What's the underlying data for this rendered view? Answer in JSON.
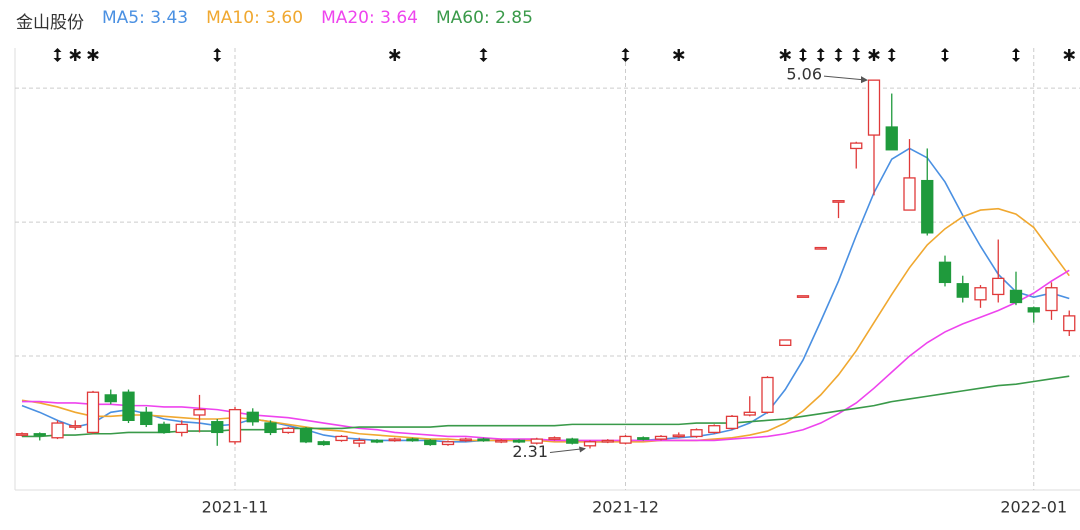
{
  "chart_data": {
    "type": "candlestick",
    "title": "金山股份",
    "categories": [
      null,
      null,
      null,
      null,
      null,
      null,
      null,
      null,
      null,
      null,
      null,
      null,
      "2021-11",
      null,
      null,
      null,
      null,
      null,
      null,
      null,
      null,
      null,
      null,
      null,
      null,
      null,
      null,
      null,
      null,
      null,
      null,
      null,
      null,
      null,
      "2021-12",
      null,
      null,
      null,
      null,
      null,
      null,
      null,
      null,
      null,
      null,
      null,
      null,
      null,
      null,
      null,
      null,
      null,
      null,
      null,
      null,
      null,
      null,
      "2022-01",
      null,
      null
    ],
    "open": [
      2.41,
      2.42,
      2.39,
      2.47,
      2.43,
      2.71,
      2.73,
      2.58,
      2.49,
      2.43,
      2.56,
      2.51,
      2.36,
      2.58,
      2.5,
      2.43,
      2.46,
      2.36,
      2.37,
      2.35,
      2.37,
      2.37,
      2.38,
      2.37,
      2.34,
      2.37,
      2.38,
      2.36,
      2.37,
      2.35,
      2.38,
      2.38,
      2.33,
      2.36,
      2.35,
      2.39,
      2.38,
      2.4,
      2.4,
      2.43,
      2.46,
      2.56,
      2.58,
      3.08,
      3.44,
      3.8,
      4.15,
      4.55,
      4.65,
      4.71,
      4.09,
      4.31,
      3.7,
      3.54,
      3.42,
      3.46,
      3.49,
      3.36,
      3.34,
      3.19
    ],
    "high": [
      2.43,
      2.43,
      2.52,
      2.52,
      2.74,
      2.75,
      2.75,
      2.62,
      2.51,
      2.52,
      2.71,
      2.53,
      2.62,
      2.61,
      2.52,
      2.47,
      2.47,
      2.37,
      2.41,
      2.39,
      2.38,
      2.39,
      2.39,
      2.38,
      2.37,
      2.39,
      2.39,
      2.38,
      2.38,
      2.39,
      2.4,
      2.39,
      2.37,
      2.38,
      2.41,
      2.4,
      2.41,
      2.43,
      2.46,
      2.49,
      2.56,
      2.7,
      2.85,
      3.12,
      3.45,
      3.81,
      4.16,
      4.6,
      5.06,
      4.96,
      4.62,
      4.55,
      3.75,
      3.6,
      3.53,
      3.87,
      3.63,
      3.37,
      3.55,
      3.34
    ],
    "low": [
      2.4,
      2.37,
      2.38,
      2.45,
      2.42,
      2.64,
      2.5,
      2.47,
      2.42,
      2.4,
      2.43,
      2.33,
      2.34,
      2.48,
      2.41,
      2.42,
      2.35,
      2.33,
      2.36,
      2.32,
      2.35,
      2.36,
      2.36,
      2.33,
      2.33,
      2.36,
      2.36,
      2.35,
      2.35,
      2.34,
      2.37,
      2.34,
      2.31,
      2.35,
      2.34,
      2.37,
      2.37,
      2.39,
      2.39,
      2.42,
      2.45,
      2.55,
      2.57,
      3.08,
      3.44,
      3.8,
      4.03,
      4.4,
      4.2,
      4.54,
      4.09,
      3.9,
      3.52,
      3.4,
      3.36,
      3.4,
      3.38,
      3.25,
      3.27,
      3.15
    ],
    "close": [
      2.42,
      2.41,
      2.5,
      2.48,
      2.73,
      2.66,
      2.52,
      2.49,
      2.43,
      2.49,
      2.6,
      2.43,
      2.6,
      2.51,
      2.43,
      2.46,
      2.36,
      2.34,
      2.4,
      2.37,
      2.36,
      2.38,
      2.37,
      2.34,
      2.36,
      2.38,
      2.37,
      2.37,
      2.36,
      2.38,
      2.39,
      2.35,
      2.36,
      2.37,
      2.4,
      2.38,
      2.4,
      2.41,
      2.45,
      2.48,
      2.55,
      2.58,
      2.84,
      3.12,
      3.45,
      3.81,
      4.16,
      4.59,
      5.06,
      4.54,
      4.33,
      3.92,
      3.55,
      3.44,
      3.51,
      3.58,
      3.4,
      3.33,
      3.51,
      3.3
    ],
    "up_color": "#e03a3a",
    "down_color": "#1f9a3c",
    "series": [
      {
        "name": "MA5",
        "color": "#4a90e2",
        "values": [
          2.63,
          2.58,
          2.52,
          2.47,
          2.5,
          2.58,
          2.6,
          2.57,
          2.53,
          2.51,
          2.5,
          2.48,
          2.49,
          2.53,
          2.51,
          2.48,
          2.45,
          2.41,
          2.39,
          2.38,
          2.37,
          2.37,
          2.37,
          2.37,
          2.36,
          2.36,
          2.37,
          2.37,
          2.37,
          2.37,
          2.37,
          2.37,
          2.36,
          2.36,
          2.37,
          2.37,
          2.38,
          2.39,
          2.4,
          2.42,
          2.45,
          2.5,
          2.58,
          2.75,
          2.97,
          3.26,
          3.56,
          3.9,
          4.22,
          4.47,
          4.55,
          4.48,
          4.3,
          4.05,
          3.82,
          3.61,
          3.48,
          3.44,
          3.47,
          3.43
        ],
        "value_labels": [
          null,
          null,
          null,
          null,
          null,
          null,
          null,
          null,
          null,
          null,
          null,
          null,
          null,
          null,
          null,
          null,
          null,
          null,
          null,
          null,
          null,
          null,
          null,
          null,
          null,
          null,
          null,
          null,
          null,
          null,
          null,
          null,
          null,
          null,
          null,
          null,
          null,
          null,
          null,
          null,
          null,
          null,
          null,
          null,
          null,
          null,
          null,
          null,
          null,
          null,
          null,
          null,
          null,
          null,
          null,
          null,
          null,
          null,
          null,
          "3.43"
        ]
      },
      {
        "name": "MA10",
        "color": "#f0a830",
        "values": [
          2.67,
          2.65,
          2.62,
          2.58,
          2.55,
          2.55,
          2.56,
          2.56,
          2.55,
          2.54,
          2.53,
          2.53,
          2.54,
          2.53,
          2.51,
          2.49,
          2.47,
          2.45,
          2.44,
          2.42,
          2.41,
          2.4,
          2.39,
          2.38,
          2.38,
          2.37,
          2.37,
          2.37,
          2.37,
          2.37,
          2.36,
          2.36,
          2.36,
          2.36,
          2.36,
          2.36,
          2.37,
          2.37,
          2.37,
          2.38,
          2.39,
          2.41,
          2.44,
          2.5,
          2.59,
          2.71,
          2.86,
          3.04,
          3.25,
          3.46,
          3.66,
          3.83,
          3.95,
          4.04,
          4.09,
          4.1,
          4.06,
          3.96,
          3.78,
          3.6
        ],
        "value_labels": [
          null,
          null,
          null,
          null,
          null,
          null,
          null,
          null,
          null,
          null,
          null,
          null,
          null,
          null,
          null,
          null,
          null,
          null,
          null,
          null,
          null,
          null,
          null,
          null,
          null,
          null,
          null,
          null,
          null,
          null,
          null,
          null,
          null,
          null,
          null,
          null,
          null,
          null,
          null,
          null,
          null,
          null,
          null,
          null,
          null,
          null,
          null,
          null,
          null,
          null,
          null,
          null,
          null,
          null,
          null,
          null,
          null,
          null,
          null,
          "3.60"
        ]
      },
      {
        "name": "MA20",
        "color": "#ee44ee",
        "values": [
          2.66,
          2.66,
          2.65,
          2.65,
          2.64,
          2.64,
          2.63,
          2.63,
          2.62,
          2.62,
          2.61,
          2.6,
          2.58,
          2.56,
          2.55,
          2.54,
          2.52,
          2.5,
          2.48,
          2.46,
          2.45,
          2.43,
          2.42,
          2.41,
          2.4,
          2.4,
          2.39,
          2.38,
          2.38,
          2.38,
          2.37,
          2.37,
          2.37,
          2.37,
          2.37,
          2.37,
          2.37,
          2.37,
          2.37,
          2.37,
          2.38,
          2.39,
          2.4,
          2.42,
          2.45,
          2.5,
          2.57,
          2.65,
          2.76,
          2.88,
          3.0,
          3.1,
          3.18,
          3.24,
          3.29,
          3.34,
          3.4,
          3.47,
          3.56,
          3.64
        ],
        "value_labels": [
          null,
          null,
          null,
          null,
          null,
          null,
          null,
          null,
          null,
          null,
          null,
          null,
          null,
          null,
          null,
          null,
          null,
          null,
          null,
          null,
          null,
          null,
          null,
          null,
          null,
          null,
          null,
          null,
          null,
          null,
          null,
          null,
          null,
          null,
          null,
          null,
          null,
          null,
          null,
          null,
          null,
          null,
          null,
          null,
          null,
          null,
          null,
          null,
          null,
          null,
          null,
          null,
          null,
          null,
          null,
          null,
          null,
          null,
          null,
          "3.64"
        ]
      },
      {
        "name": "MA60",
        "color": "#3a9a4a",
        "values": [
          2.4,
          2.4,
          2.41,
          2.41,
          2.42,
          2.42,
          2.43,
          2.43,
          2.43,
          2.44,
          2.44,
          2.44,
          2.45,
          2.45,
          2.45,
          2.46,
          2.46,
          2.46,
          2.46,
          2.47,
          2.47,
          2.47,
          2.47,
          2.47,
          2.48,
          2.48,
          2.48,
          2.48,
          2.48,
          2.48,
          2.48,
          2.49,
          2.49,
          2.49,
          2.49,
          2.49,
          2.49,
          2.49,
          2.5,
          2.5,
          2.5,
          2.51,
          2.52,
          2.53,
          2.55,
          2.57,
          2.59,
          2.61,
          2.63,
          2.66,
          2.68,
          2.7,
          2.72,
          2.74,
          2.76,
          2.78,
          2.79,
          2.81,
          2.83,
          2.85
        ],
        "value_labels": [
          null,
          null,
          null,
          null,
          null,
          null,
          null,
          null,
          null,
          null,
          null,
          null,
          null,
          null,
          null,
          null,
          null,
          null,
          null,
          null,
          null,
          null,
          null,
          null,
          null,
          null,
          null,
          null,
          null,
          null,
          null,
          null,
          null,
          null,
          null,
          null,
          null,
          null,
          null,
          null,
          null,
          null,
          null,
          null,
          null,
          null,
          null,
          null,
          null,
          null,
          null,
          null,
          null,
          null,
          null,
          null,
          null,
          null,
          null,
          "2.85"
        ]
      }
    ],
    "ylim": [
      2,
      5.3
    ],
    "yticks": [
      3,
      4,
      5
    ],
    "grid": true
  }
}
